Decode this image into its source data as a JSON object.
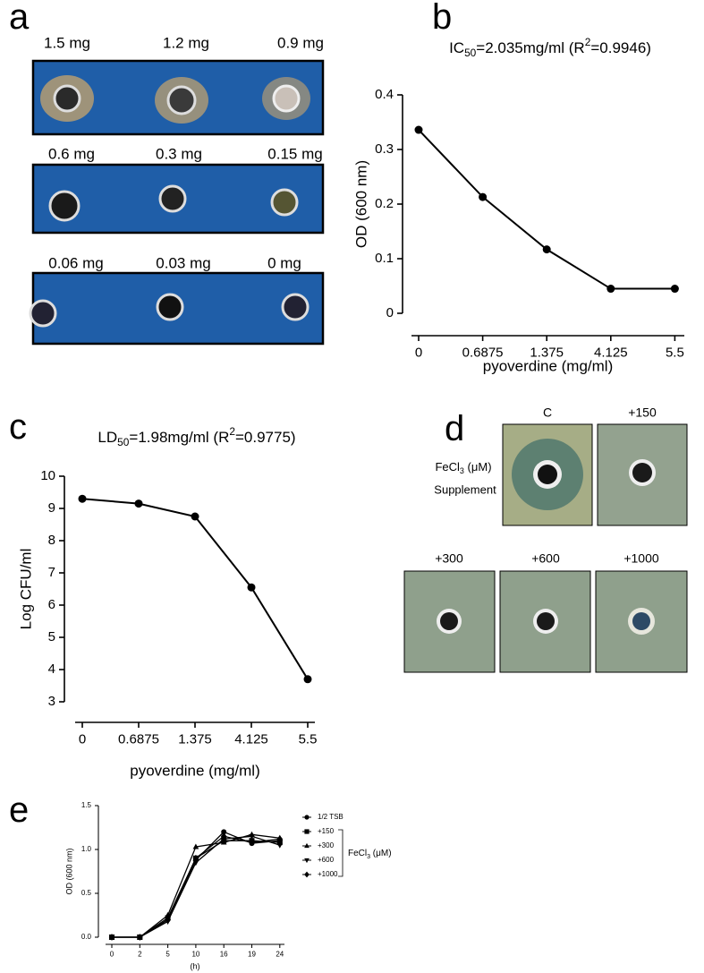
{
  "panels": {
    "a": {
      "letter": "a",
      "labels": [
        [
          "1.5 mg",
          "1.2 mg",
          "0.9 mg"
        ],
        [
          "0.6 mg",
          "0.3 mg",
          "0.15 mg"
        ],
        [
          "0.06 mg",
          "0.03 mg",
          "0 mg"
        ]
      ]
    },
    "d": {
      "letter": "d",
      "labels": [
        "C",
        "+150",
        "+300",
        "+600",
        "+1000"
      ],
      "side_label": [
        "FeCl",
        "3",
        " (μM)"
      ],
      "side_label2": "Supplement"
    }
  },
  "chart_data": [
    {
      "type": "line",
      "panel": "b",
      "title": [
        "IC",
        "50",
        "=2.035mg/ml (R",
        "2",
        "=0.9946)"
      ],
      "categories": [
        "0",
        "0.6875",
        "1.375",
        "4.125",
        "5.5"
      ],
      "values": [
        0.336,
        0.213,
        0.117,
        0.045,
        0.045
      ],
      "color": "#000000",
      "marker": "circle",
      "ylim": [
        0,
        0.4
      ],
      "yticks": [
        0,
        0.1,
        0.2,
        0.3,
        0.4
      ],
      "xlabel": "pyoverdine (mg/ml)",
      "ylabel": "OD (600 nm)"
    },
    {
      "type": "line",
      "panel": "c",
      "title": [
        "LD",
        "50",
        "=1.98mg/ml (R",
        "2",
        "=0.9775)"
      ],
      "categories": [
        "0",
        "0.6875",
        "1.375",
        "4.125",
        "5.5"
      ],
      "values": [
        9.3,
        9.15,
        8.75,
        6.55,
        3.7
      ],
      "color": "#000000",
      "marker": "circle",
      "ylim": [
        3,
        10
      ],
      "yticks": [
        3,
        4,
        5,
        6,
        7,
        8,
        9,
        10
      ],
      "xlabel": "pyoverdine (mg/ml)",
      "ylabel": "Log CFU/ml"
    },
    {
      "type": "line",
      "panel": "e",
      "categories": [
        "0",
        "2",
        "5",
        "10",
        "16",
        "19",
        "24"
      ],
      "series": [
        {
          "name": "1/2 TSB",
          "color": "#000000",
          "marker": "circle",
          "values": [
            0,
            0,
            0.2,
            0.88,
            1.2,
            1.07,
            1.1
          ]
        },
        {
          "name": "+150",
          "color": "#000000",
          "marker": "square",
          "values": [
            0,
            0,
            0.22,
            0.9,
            1.1,
            1.1,
            1.08
          ]
        },
        {
          "name": "+300",
          "color": "#000000",
          "marker": "triangle-up",
          "values": [
            0,
            0,
            0.25,
            1.03,
            1.08,
            1.17,
            1.13
          ]
        },
        {
          "name": "+600",
          "color": "#000000",
          "marker": "triangle-down",
          "values": [
            0,
            0,
            0.18,
            0.85,
            1.12,
            1.15,
            1.05
          ]
        },
        {
          "name": "+1000",
          "color": "#000000",
          "marker": "diamond",
          "values": [
            0,
            0,
            0.2,
            0.9,
            1.15,
            1.08,
            1.12
          ]
        }
      ],
      "legend_group": [
        "FeCl",
        "3",
        " (μM)"
      ],
      "ylim": [
        0,
        1.5
      ],
      "yticks": [
        {
          "value": 0,
          "label": "0.0"
        },
        {
          "value": 0.5,
          "label": "0.5"
        },
        {
          "value": 1,
          "label": "1.0"
        },
        {
          "value": 1.5,
          "label": "1.5"
        }
      ],
      "xlabel": "(h)",
      "ylabel": "OD (600 nm)"
    }
  ]
}
